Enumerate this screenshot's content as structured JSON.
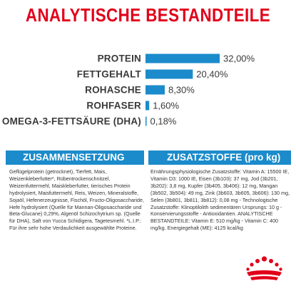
{
  "title": "ANALYTISCHE BESTANDTEILE",
  "chart_data": {
    "type": "bar",
    "orientation": "horizontal",
    "categories": [
      "PROTEIN",
      "FETTGEHALT",
      "ROHASCHE",
      "ROHFASER",
      "OMEGA-3-FETTSÄURE (DHA)"
    ],
    "values": [
      32.0,
      20.4,
      8.3,
      1.6,
      0.18
    ],
    "value_labels": [
      "32,00%",
      "20,40%",
      "8,30%",
      "1,60%",
      "0,18%"
    ],
    "unit": "%",
    "bar_color": "#1b8bcb",
    "xlim": [
      0,
      32
    ]
  },
  "composition": {
    "heading": "ZUSAMMENSETZUNG",
    "text": "Geflügelprotein (getrocknet), Tierfett, Mais, Weizenkleberfutter*, Rübentrockenschnitzel, Weizenfuttermehl, Maiskleberfutter, tierisches Protein hydrolysiert, Maisfuttermehl, Reis, Weizen, Mineralstoffe, Sojaöl, Hefenerzeugnisse, Fischöl, Fructo-Oligosaccharide, Hefe hydrolysiert (Quelle für Mannan-Oligosaccharide und Beta-Glucane) 0,29%, Algenöl Schizochytrium sp. (Quelle für DHA), Saft von Yucca Schidigera, Tagetesmehl. *L.I.P.: Für ihre sehr hohe Verdaulichkeit ausgewählte Proteine."
  },
  "additives": {
    "heading": "ZUSATZSTOFFE (pro kg)",
    "text": "Ernährungsphysiologische Zusatzstoffe: Vitamin A: 15500 IE, Vitamin D3: 1000 IE, Eisen (3b103): 37 mg, Jod (3b201, 3b202): 3,8 mg, Kupfer (3b405, 3b406): 12 mg, Mangan (3b502, 3b504): 49 mg, Zink (3b603, 3b605, 3b606): 130 mg, Selen (3b801, 3b811, 3b812): 0,08 mg - Technologische Zusatzstoffe: Klinoptilolith sedimentären Ursprungs: 10 g - Konservierungsstoffe - Antioxidantien. ANALYTISCHE BESTANDTEILE: Vitamin E: 510 mg/kg - Vitamin C: 400 mg/kg. Energiegehalt (ME): 4125 kcal/kg"
  },
  "logo": {
    "name": "royal-canin-crown-logo",
    "color": "#e2001a"
  }
}
